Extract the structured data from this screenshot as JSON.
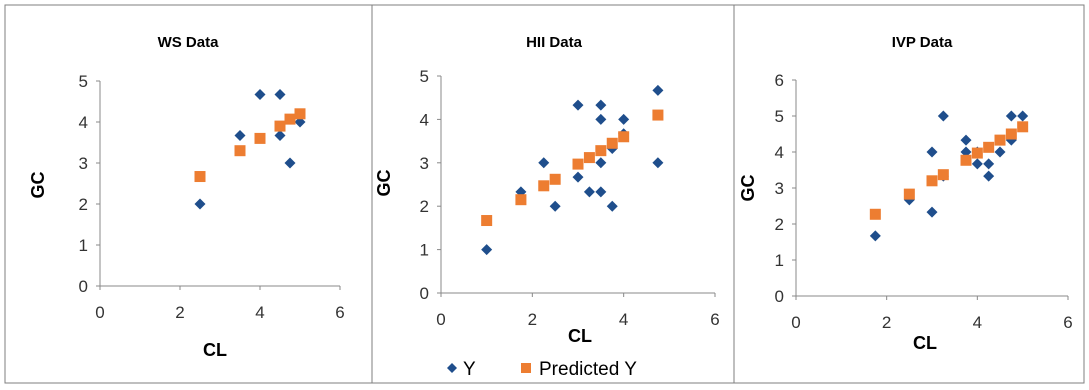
{
  "colors": {
    "y": "#1F4E8C",
    "predicted": "#ED7D31",
    "axis": "#888888",
    "panel_border": "#7f7f7f"
  },
  "legend": {
    "y_label": "Y",
    "predicted_label": "Predicted Y",
    "position": "bottom"
  },
  "chart_data": [
    {
      "type": "scatter",
      "title": "WS Data",
      "xlabel": "CL",
      "ylabel": "GC",
      "xlim": [
        0,
        6
      ],
      "ylim": [
        0,
        5
      ],
      "xticks": [
        "0",
        "2",
        "4",
        "6"
      ],
      "yticks": [
        "0",
        "1",
        "2",
        "3",
        "4",
        "5"
      ],
      "grid": false,
      "series": [
        {
          "name": "Y",
          "marker": "diamond",
          "points": [
            [
              2.5,
              2.0
            ],
            [
              3.5,
              3.67
            ],
            [
              4.0,
              4.67
            ],
            [
              4.5,
              4.67
            ],
            [
              4.5,
              3.67
            ],
            [
              4.75,
              3.0
            ],
            [
              5.0,
              4.0
            ]
          ]
        },
        {
          "name": "Predicted Y",
          "marker": "square",
          "points": [
            [
              2.5,
              2.67
            ],
            [
              3.5,
              3.3
            ],
            [
              4.0,
              3.6
            ],
            [
              4.5,
              3.9
            ],
            [
              4.75,
              4.07
            ],
            [
              5.0,
              4.2
            ]
          ]
        }
      ]
    },
    {
      "type": "scatter",
      "title": "HII Data",
      "xlabel": "CL",
      "ylabel": "GC",
      "xlim": [
        0,
        6
      ],
      "ylim": [
        0,
        5
      ],
      "xticks": [
        "0",
        "2",
        "4",
        "6"
      ],
      "yticks": [
        "0",
        "1",
        "2",
        "3",
        "4",
        "5"
      ],
      "grid": false,
      "series": [
        {
          "name": "Y",
          "marker": "diamond",
          "points": [
            [
              1.0,
              1.0
            ],
            [
              1.75,
              2.33
            ],
            [
              2.25,
              3.0
            ],
            [
              2.5,
              2.0
            ],
            [
              3.0,
              4.33
            ],
            [
              3.0,
              2.67
            ],
            [
              3.25,
              2.33
            ],
            [
              3.5,
              4.33
            ],
            [
              3.5,
              4.0
            ],
            [
              3.5,
              3.0
            ],
            [
              3.5,
              2.33
            ],
            [
              3.75,
              3.33
            ],
            [
              3.75,
              2.0
            ],
            [
              4.0,
              4.0
            ],
            [
              4.0,
              3.67
            ],
            [
              4.75,
              4.67
            ],
            [
              4.75,
              3.0
            ]
          ]
        },
        {
          "name": "Predicted Y",
          "marker": "square",
          "points": [
            [
              1.0,
              1.67
            ],
            [
              1.75,
              2.15
            ],
            [
              2.25,
              2.47
            ],
            [
              2.5,
              2.62
            ],
            [
              3.0,
              2.97
            ],
            [
              3.25,
              3.12
            ],
            [
              3.5,
              3.28
            ],
            [
              3.75,
              3.45
            ],
            [
              4.0,
              3.6
            ],
            [
              4.75,
              4.1
            ]
          ]
        }
      ]
    },
    {
      "type": "scatter",
      "title": "IVP Data",
      "xlabel": "CL",
      "ylabel": "GC",
      "xlim": [
        0,
        6
      ],
      "ylim": [
        0,
        6
      ],
      "xticks": [
        "0",
        "2",
        "4",
        "6"
      ],
      "yticks": [
        "0",
        "1",
        "2",
        "3",
        "4",
        "5",
        "6"
      ],
      "grid": false,
      "series": [
        {
          "name": "Y",
          "marker": "diamond",
          "points": [
            [
              1.75,
              1.67
            ],
            [
              2.5,
              2.67
            ],
            [
              3.0,
              2.33
            ],
            [
              3.0,
              4.0
            ],
            [
              3.25,
              5.0
            ],
            [
              3.25,
              3.33
            ],
            [
              3.75,
              4.33
            ],
            [
              3.75,
              4.0
            ],
            [
              4.0,
              3.67
            ],
            [
              4.0,
              4.0
            ],
            [
              4.25,
              3.33
            ],
            [
              4.25,
              3.67
            ],
            [
              4.5,
              4.0
            ],
            [
              4.75,
              4.33
            ],
            [
              4.75,
              5.0
            ],
            [
              5.0,
              5.0
            ]
          ]
        },
        {
          "name": "Predicted Y",
          "marker": "square",
          "points": [
            [
              1.75,
              2.27
            ],
            [
              2.5,
              2.83
            ],
            [
              3.0,
              3.2
            ],
            [
              3.25,
              3.37
            ],
            [
              3.75,
              3.77
            ],
            [
              4.0,
              3.97
            ],
            [
              4.25,
              4.13
            ],
            [
              4.5,
              4.33
            ],
            [
              4.75,
              4.5
            ],
            [
              5.0,
              4.7
            ]
          ]
        }
      ]
    }
  ]
}
